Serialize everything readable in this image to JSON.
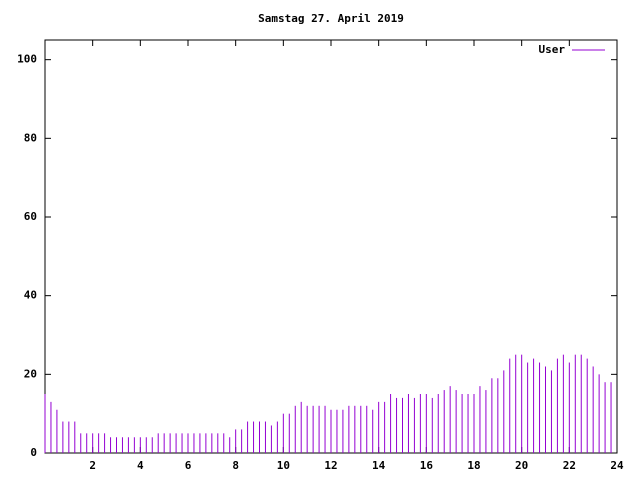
{
  "chart_data": {
    "type": "impulse",
    "title": "Samstag 27. April 2019",
    "x": [
      0,
      0.25,
      0.5,
      0.75,
      1,
      1.25,
      1.5,
      1.75,
      2,
      2.25,
      2.5,
      2.75,
      3,
      3.25,
      3.5,
      3.75,
      4,
      4.25,
      4.5,
      4.75,
      5,
      5.25,
      5.5,
      5.75,
      6,
      6.25,
      6.5,
      6.75,
      7,
      7.25,
      7.5,
      7.75,
      8,
      8.25,
      8.5,
      8.75,
      9,
      9.25,
      9.5,
      9.75,
      10,
      10.25,
      10.5,
      10.75,
      11,
      11.25,
      11.5,
      11.75,
      12,
      12.25,
      12.5,
      12.75,
      13,
      13.25,
      13.5,
      13.75,
      14,
      14.25,
      14.5,
      14.75,
      15,
      15.25,
      15.5,
      15.75,
      16,
      16.25,
      16.5,
      16.75,
      17,
      17.25,
      17.5,
      17.75,
      18,
      18.25,
      18.5,
      18.75,
      19,
      19.25,
      19.5,
      19.75,
      20,
      20.25,
      20.5,
      20.75,
      21,
      21.25,
      21.5,
      21.75,
      22,
      22.25,
      22.5,
      22.75,
      23,
      23.25,
      23.5,
      23.75
    ],
    "series": [
      {
        "name": "User",
        "color": "#9400d3",
        "values": [
          15,
          13,
          11,
          8,
          8,
          8,
          5,
          5,
          5,
          5,
          5,
          4,
          4,
          4,
          4,
          4,
          4,
          4,
          4,
          5,
          5,
          5,
          5,
          5,
          5,
          5,
          5,
          5,
          5,
          5,
          5,
          4,
          6,
          6,
          8,
          8,
          8,
          8,
          7,
          8,
          10,
          10,
          12,
          13,
          12,
          12,
          12,
          12,
          11,
          11,
          11,
          12,
          12,
          12,
          12,
          11,
          13,
          13,
          15,
          14,
          14,
          15,
          14,
          15,
          15,
          14,
          15,
          16,
          17,
          16,
          15,
          15,
          15,
          17,
          16,
          19,
          19,
          21,
          24,
          25,
          25,
          23,
          24,
          23,
          22,
          21,
          24,
          25,
          23,
          25,
          25,
          24,
          22,
          20,
          18,
          18
        ]
      }
    ],
    "xlim": [
      0,
      24
    ],
    "xticks": [
      2,
      4,
      6,
      8,
      10,
      12,
      14,
      16,
      18,
      20,
      22,
      24
    ],
    "ylim": [
      0,
      105
    ],
    "yticks": [
      0,
      20,
      40,
      60,
      80,
      100
    ],
    "legend": "top-right"
  }
}
